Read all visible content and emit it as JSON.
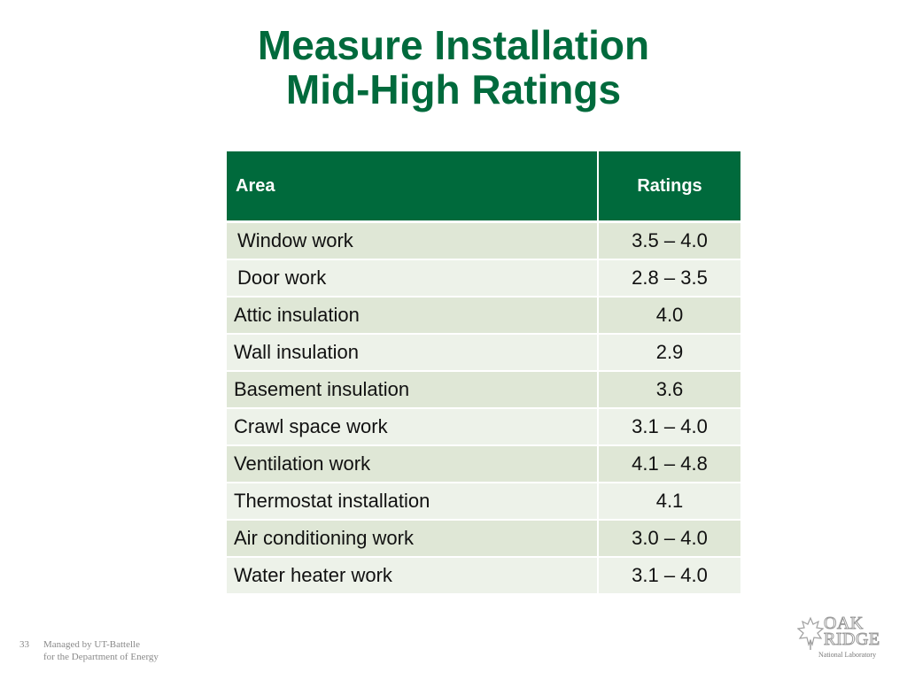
{
  "title": {
    "line1": "Measure Installation",
    "line2": "Mid-High Ratings"
  },
  "table": {
    "headers": {
      "area": "Area",
      "ratings": "Ratings"
    },
    "rows": [
      {
        "area": "Window work",
        "rating": "3.5 – 4.0"
      },
      {
        "area": "Door work",
        "rating": "2.8 – 3.5"
      },
      {
        "area": "Attic insulation",
        "rating": "4.0"
      },
      {
        "area": "Wall insulation",
        "rating": "2.9"
      },
      {
        "area": "Basement insulation",
        "rating": "3.6"
      },
      {
        "area": "Crawl space work",
        "rating": "3.1 – 4.0"
      },
      {
        "area": "Ventilation work",
        "rating": "4.1 – 4.8"
      },
      {
        "area": "Thermostat installation",
        "rating": "4.1"
      },
      {
        "area": "Air conditioning work",
        "rating": "3.0 – 4.0"
      },
      {
        "area": "Water heater work",
        "rating": "3.1 – 4.0"
      }
    ]
  },
  "footer": {
    "slide_number": "33",
    "managed_line1": "Managed by UT-Battelle",
    "managed_line2": "for the Department of Energy"
  },
  "logo": {
    "oak": "OAK",
    "ridge": "RIDGE",
    "lab": "National Laboratory",
    "icon": "leaf-icon"
  },
  "colors": {
    "brand_green": "#006a3c",
    "row_dark": "#dfe7d6",
    "row_light": "#edf2e9"
  }
}
